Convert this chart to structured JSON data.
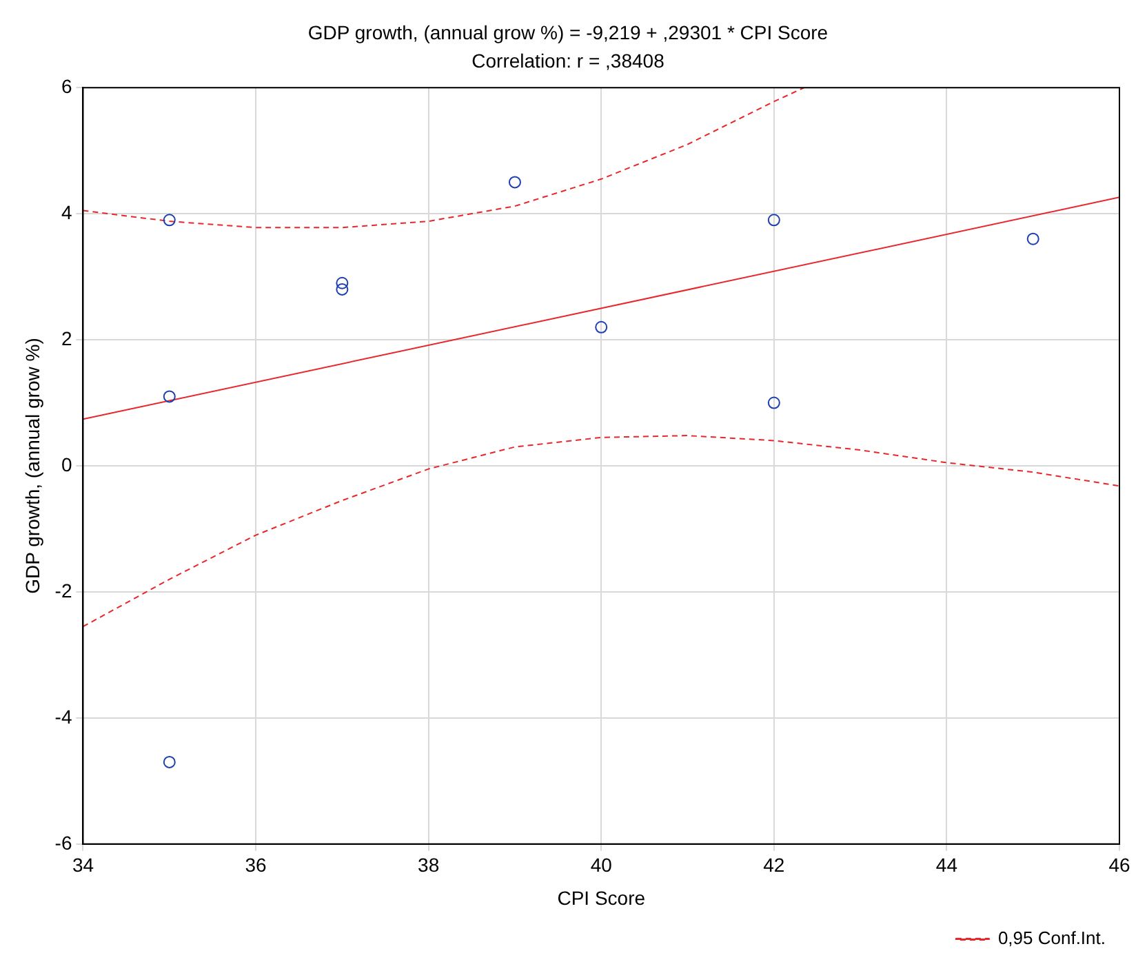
{
  "chart_data": {
    "type": "scatter",
    "title": "GDP growth, (annual grow %) = -9,219 + ,29301 * CPI Score",
    "subtitle": "Correlation: r = ,38408",
    "xlabel": "CPI Score",
    "ylabel": "GDP growth, (annual grow %)",
    "xlim": [
      34,
      46
    ],
    "xticks": [
      34,
      36,
      38,
      40,
      42,
      44,
      46
    ],
    "ylim": [
      -6,
      6
    ],
    "yticks": [
      -6,
      -4,
      -2,
      0,
      2,
      4,
      6
    ],
    "grid": true,
    "legend": "bottom right",
    "series": [
      {
        "type": "scatter",
        "color": "#1c3fb0",
        "marker": "circle",
        "x": [
          35,
          35,
          35,
          37,
          37,
          39,
          40,
          42,
          42,
          45
        ],
        "values": [
          3.9,
          1.1,
          -4.7,
          2.9,
          2.8,
          4.5,
          2.2,
          3.9,
          1.0,
          3.6
        ]
      },
      {
        "type": "line",
        "color": "#e8262b",
        "line_style": "solid",
        "x": [
          34,
          46
        ],
        "values": [
          0.74,
          4.26
        ]
      },
      {
        "type": "line",
        "name": "0,95 Conf.Int.",
        "color": "#e8262b",
        "line_style": "dashed",
        "x": [
          34,
          35,
          36,
          37,
          38,
          39,
          40,
          41,
          42,
          42.35
        ],
        "values": [
          4.05,
          3.88,
          3.78,
          3.78,
          3.88,
          4.12,
          4.55,
          5.1,
          5.78,
          6
        ]
      },
      {
        "type": "line",
        "color": "#e8262b",
        "line_style": "dashed",
        "x": [
          34,
          35,
          36,
          37,
          38,
          39,
          40,
          41,
          42,
          43,
          44,
          45,
          46
        ],
        "values": [
          -2.55,
          -1.8,
          -1.1,
          -0.55,
          -0.05,
          0.3,
          0.45,
          0.48,
          0.4,
          0.25,
          0.05,
          -0.1,
          -0.32
        ]
      }
    ]
  }
}
